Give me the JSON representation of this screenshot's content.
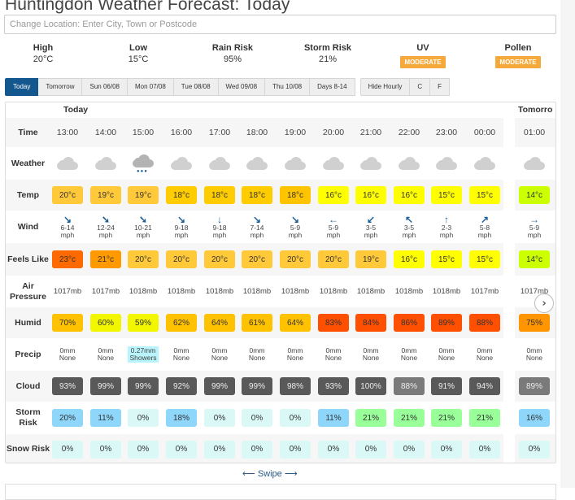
{
  "page": {
    "title": "Huntingdon Weather Forecast: Today"
  },
  "search": {
    "placeholder": "Change Location: Enter City, Town or Postcode",
    "value": ""
  },
  "summary": [
    {
      "label": "High",
      "value": "20°C"
    },
    {
      "label": "Low",
      "value": "15°C"
    },
    {
      "label": "Rain Risk",
      "value": "95%"
    },
    {
      "label": "Storm Risk",
      "value": "21%"
    },
    {
      "label": "UV",
      "badge": "MODERATE"
    },
    {
      "label": "Pollen",
      "badge": "MODERATE"
    }
  ],
  "tabs": [
    {
      "label": "Today",
      "active": true
    },
    {
      "label": "Tomorrow"
    },
    {
      "label": "Sun 06/08"
    },
    {
      "label": "Mon 07/08"
    },
    {
      "label": "Tue 08/08"
    },
    {
      "label": "Wed 09/08"
    },
    {
      "label": "Thu 10/08"
    },
    {
      "label": "Days 8-14"
    }
  ],
  "options": [
    {
      "label": "Hide Hourly"
    },
    {
      "label": "C"
    },
    {
      "label": "F"
    }
  ],
  "table": {
    "day_headers": {
      "today": "Today",
      "tomorrow": "Tomorro"
    },
    "row_labels": {
      "time": "Time",
      "weather": "Weather",
      "temp": "Temp",
      "wind": "Wind",
      "feels": "Feels Like",
      "pressure": "Air Pressure",
      "humid": "Humid",
      "precip": "Precip",
      "cloud": "Cloud",
      "storm": "Storm Risk",
      "snow": "Snow Risk"
    },
    "hours": [
      {
        "time": "13:00",
        "weather": "cloud",
        "temp": "20°c",
        "temp_color": "#ffc93a",
        "wind_dir": "↘",
        "wind": "6-14",
        "wind_unit": "mph",
        "feels": "23°c",
        "feels_color": "#ff6a00",
        "pressure": "1017mb",
        "humid": "70%",
        "humid_color": "#ffc200",
        "precip_amt": "0mm",
        "precip_type": "None",
        "cloud": "93%",
        "cloud_color": "#595959",
        "storm": "20%",
        "storm_color": "#8fd6fb",
        "snow": "0%"
      },
      {
        "time": "14:00",
        "weather": "cloud",
        "temp": "19°c",
        "temp_color": "#ffc93a",
        "wind_dir": "➘",
        "wind": "12-24",
        "wind_unit": "mph",
        "feels": "21°c",
        "feels_color": "#ff9900",
        "pressure": "1017mb",
        "humid": "60%",
        "humid_color": "#f2f700",
        "precip_amt": "0mm",
        "precip_type": "None",
        "cloud": "99%",
        "cloud_color": "#595959",
        "storm": "11%",
        "storm_color": "#8fd6fb",
        "snow": "0%"
      },
      {
        "time": "15:00",
        "weather": "rain",
        "temp": "19°c",
        "temp_color": "#ffc93a",
        "wind_dir": "➘",
        "wind": "10-21",
        "wind_unit": "mph",
        "feels": "20°c",
        "feels_color": "#ffc93a",
        "pressure": "1018mb",
        "humid": "59%",
        "humid_color": "#f2f700",
        "precip_amt": "0.27mm",
        "precip_type": "Showers",
        "precip_color": "#b8f4fb",
        "cloud": "99%",
        "cloud_color": "#595959",
        "storm": "0%",
        "storm_color": "#daf8f6",
        "snow": "0%"
      },
      {
        "time": "16:00",
        "weather": "cloud",
        "temp": "18°c",
        "temp_color": "#ffcc00",
        "wind_dir": "↘",
        "wind": "9-18",
        "wind_unit": "mph",
        "feels": "20°c",
        "feels_color": "#ffc93a",
        "pressure": "1018mb",
        "humid": "62%",
        "humid_color": "#ffc200",
        "precip_amt": "0mm",
        "precip_type": "None",
        "cloud": "92%",
        "cloud_color": "#595959",
        "storm": "18%",
        "storm_color": "#8fd6fb",
        "snow": "0%"
      },
      {
        "time": "17:00",
        "weather": "cloud",
        "temp": "18°c",
        "temp_color": "#ffcc00",
        "wind_dir": "↓",
        "wind": "9-18",
        "wind_unit": "mph",
        "feels": "20°c",
        "feels_color": "#ffc93a",
        "pressure": "1018mb",
        "humid": "64%",
        "humid_color": "#ffc200",
        "precip_amt": "0mm",
        "precip_type": "None",
        "cloud": "99%",
        "cloud_color": "#595959",
        "storm": "0%",
        "storm_color": "#daf8f6",
        "snow": "0%"
      },
      {
        "time": "18:00",
        "weather": "cloud",
        "temp": "18°c",
        "temp_color": "#ffcc00",
        "wind_dir": "↘",
        "wind": "7-14",
        "wind_unit": "mph",
        "feels": "20°c",
        "feels_color": "#ffc93a",
        "pressure": "1018mb",
        "humid": "61%",
        "humid_color": "#ffc200",
        "precip_amt": "0mm",
        "precip_type": "None",
        "cloud": "99%",
        "cloud_color": "#595959",
        "storm": "0%",
        "storm_color": "#daf8f6",
        "snow": "0%"
      },
      {
        "time": "19:00",
        "weather": "cloud",
        "temp": "18°c",
        "temp_color": "#ffc400",
        "wind_dir": "↘",
        "wind": "5-9",
        "wind_unit": "mph",
        "feels": "20°c",
        "feels_color": "#ffc93a",
        "pressure": "1018mb",
        "humid": "64%",
        "humid_color": "#ffc200",
        "precip_amt": "0mm",
        "precip_type": "None",
        "cloud": "98%",
        "cloud_color": "#595959",
        "storm": "0%",
        "storm_color": "#daf8f6",
        "snow": "0%"
      },
      {
        "time": "20:00",
        "weather": "cloud",
        "temp": "16°c",
        "temp_color": "#ffff00",
        "wind_dir": "←",
        "wind": "5-9",
        "wind_unit": "mph",
        "feels": "20°c",
        "feels_color": "#ffc93a",
        "pressure": "1018mb",
        "humid": "83%",
        "humid_color": "#ff4f00",
        "precip_amt": "0mm",
        "precip_type": "None",
        "cloud": "93%",
        "cloud_color": "#595959",
        "storm": "11%",
        "storm_color": "#8fd6fb",
        "snow": "0%"
      },
      {
        "time": "21:00",
        "weather": "cloud",
        "temp": "16°c",
        "temp_color": "#ffff00",
        "wind_dir": "↙",
        "wind": "3-5",
        "wind_unit": "mph",
        "feels": "19°c",
        "feels_color": "#ffc93a",
        "pressure": "1018mb",
        "humid": "84%",
        "humid_color": "#ff4f00",
        "precip_amt": "0mm",
        "precip_type": "None",
        "cloud": "100%",
        "cloud_color": "#595959",
        "storm": "21%",
        "storm_color": "#99ff99",
        "snow": "0%"
      },
      {
        "time": "22:00",
        "weather": "cloud",
        "temp": "16°c",
        "temp_color": "#ffff00",
        "wind_dir": "↖",
        "wind": "3-5",
        "wind_unit": "mph",
        "feels": "16°c",
        "feels_color": "#ffff00",
        "pressure": "1018mb",
        "humid": "86%",
        "humid_color": "#ff4f00",
        "precip_amt": "0mm",
        "precip_type": "None",
        "cloud": "88%",
        "cloud_color": "#7a7a7a",
        "storm": "21%",
        "storm_color": "#99ff99",
        "snow": "0%"
      },
      {
        "time": "23:00",
        "weather": "cloud",
        "temp": "15°c",
        "temp_color": "#ffff00",
        "wind_dir": "↑",
        "wind": "2-3",
        "wind_unit": "mph",
        "feels": "15°c",
        "feels_color": "#ffff00",
        "pressure": "1018mb",
        "humid": "89%",
        "humid_color": "#ff4f00",
        "precip_amt": "0mm",
        "precip_type": "None",
        "cloud": "91%",
        "cloud_color": "#595959",
        "storm": "21%",
        "storm_color": "#99ff99",
        "snow": "0%"
      },
      {
        "time": "00:00",
        "weather": "cloud",
        "temp": "15°c",
        "temp_color": "#ffff00",
        "wind_dir": "↗",
        "wind": "5-8",
        "wind_unit": "mph",
        "feels": "15°c",
        "feels_color": "#ffff00",
        "pressure": "1017mb",
        "humid": "88%",
        "humid_color": "#ff4f00",
        "precip_amt": "0mm",
        "precip_type": "None",
        "cloud": "94%",
        "cloud_color": "#595959",
        "storm": "21%",
        "storm_color": "#99ff99",
        "snow": "0%"
      },
      {
        "time": "01:00",
        "weather": "cloud",
        "temp": "14°c",
        "temp_color": "#ccff00",
        "wind_dir": "→",
        "wind": "5-9",
        "wind_unit": "mph",
        "feels": "14°c",
        "feels_color": "#ccff00",
        "pressure": "1017mb",
        "humid": "75%",
        "humid_color": "#ff9500",
        "precip_amt": "0mm",
        "precip_type": "None",
        "cloud": "89%",
        "cloud_color": "#7a7a7a",
        "storm": "16%",
        "storm_color": "#8fd6fb",
        "snow": "0%"
      }
    ],
    "snow_color": "#daf8f6"
  },
  "swipe": {
    "label": "⟵ Swipe ⟶"
  },
  "colors": {
    "accent": "#14578e",
    "badge": "#f5a93b",
    "wind_arrow": "#1d5e94"
  }
}
